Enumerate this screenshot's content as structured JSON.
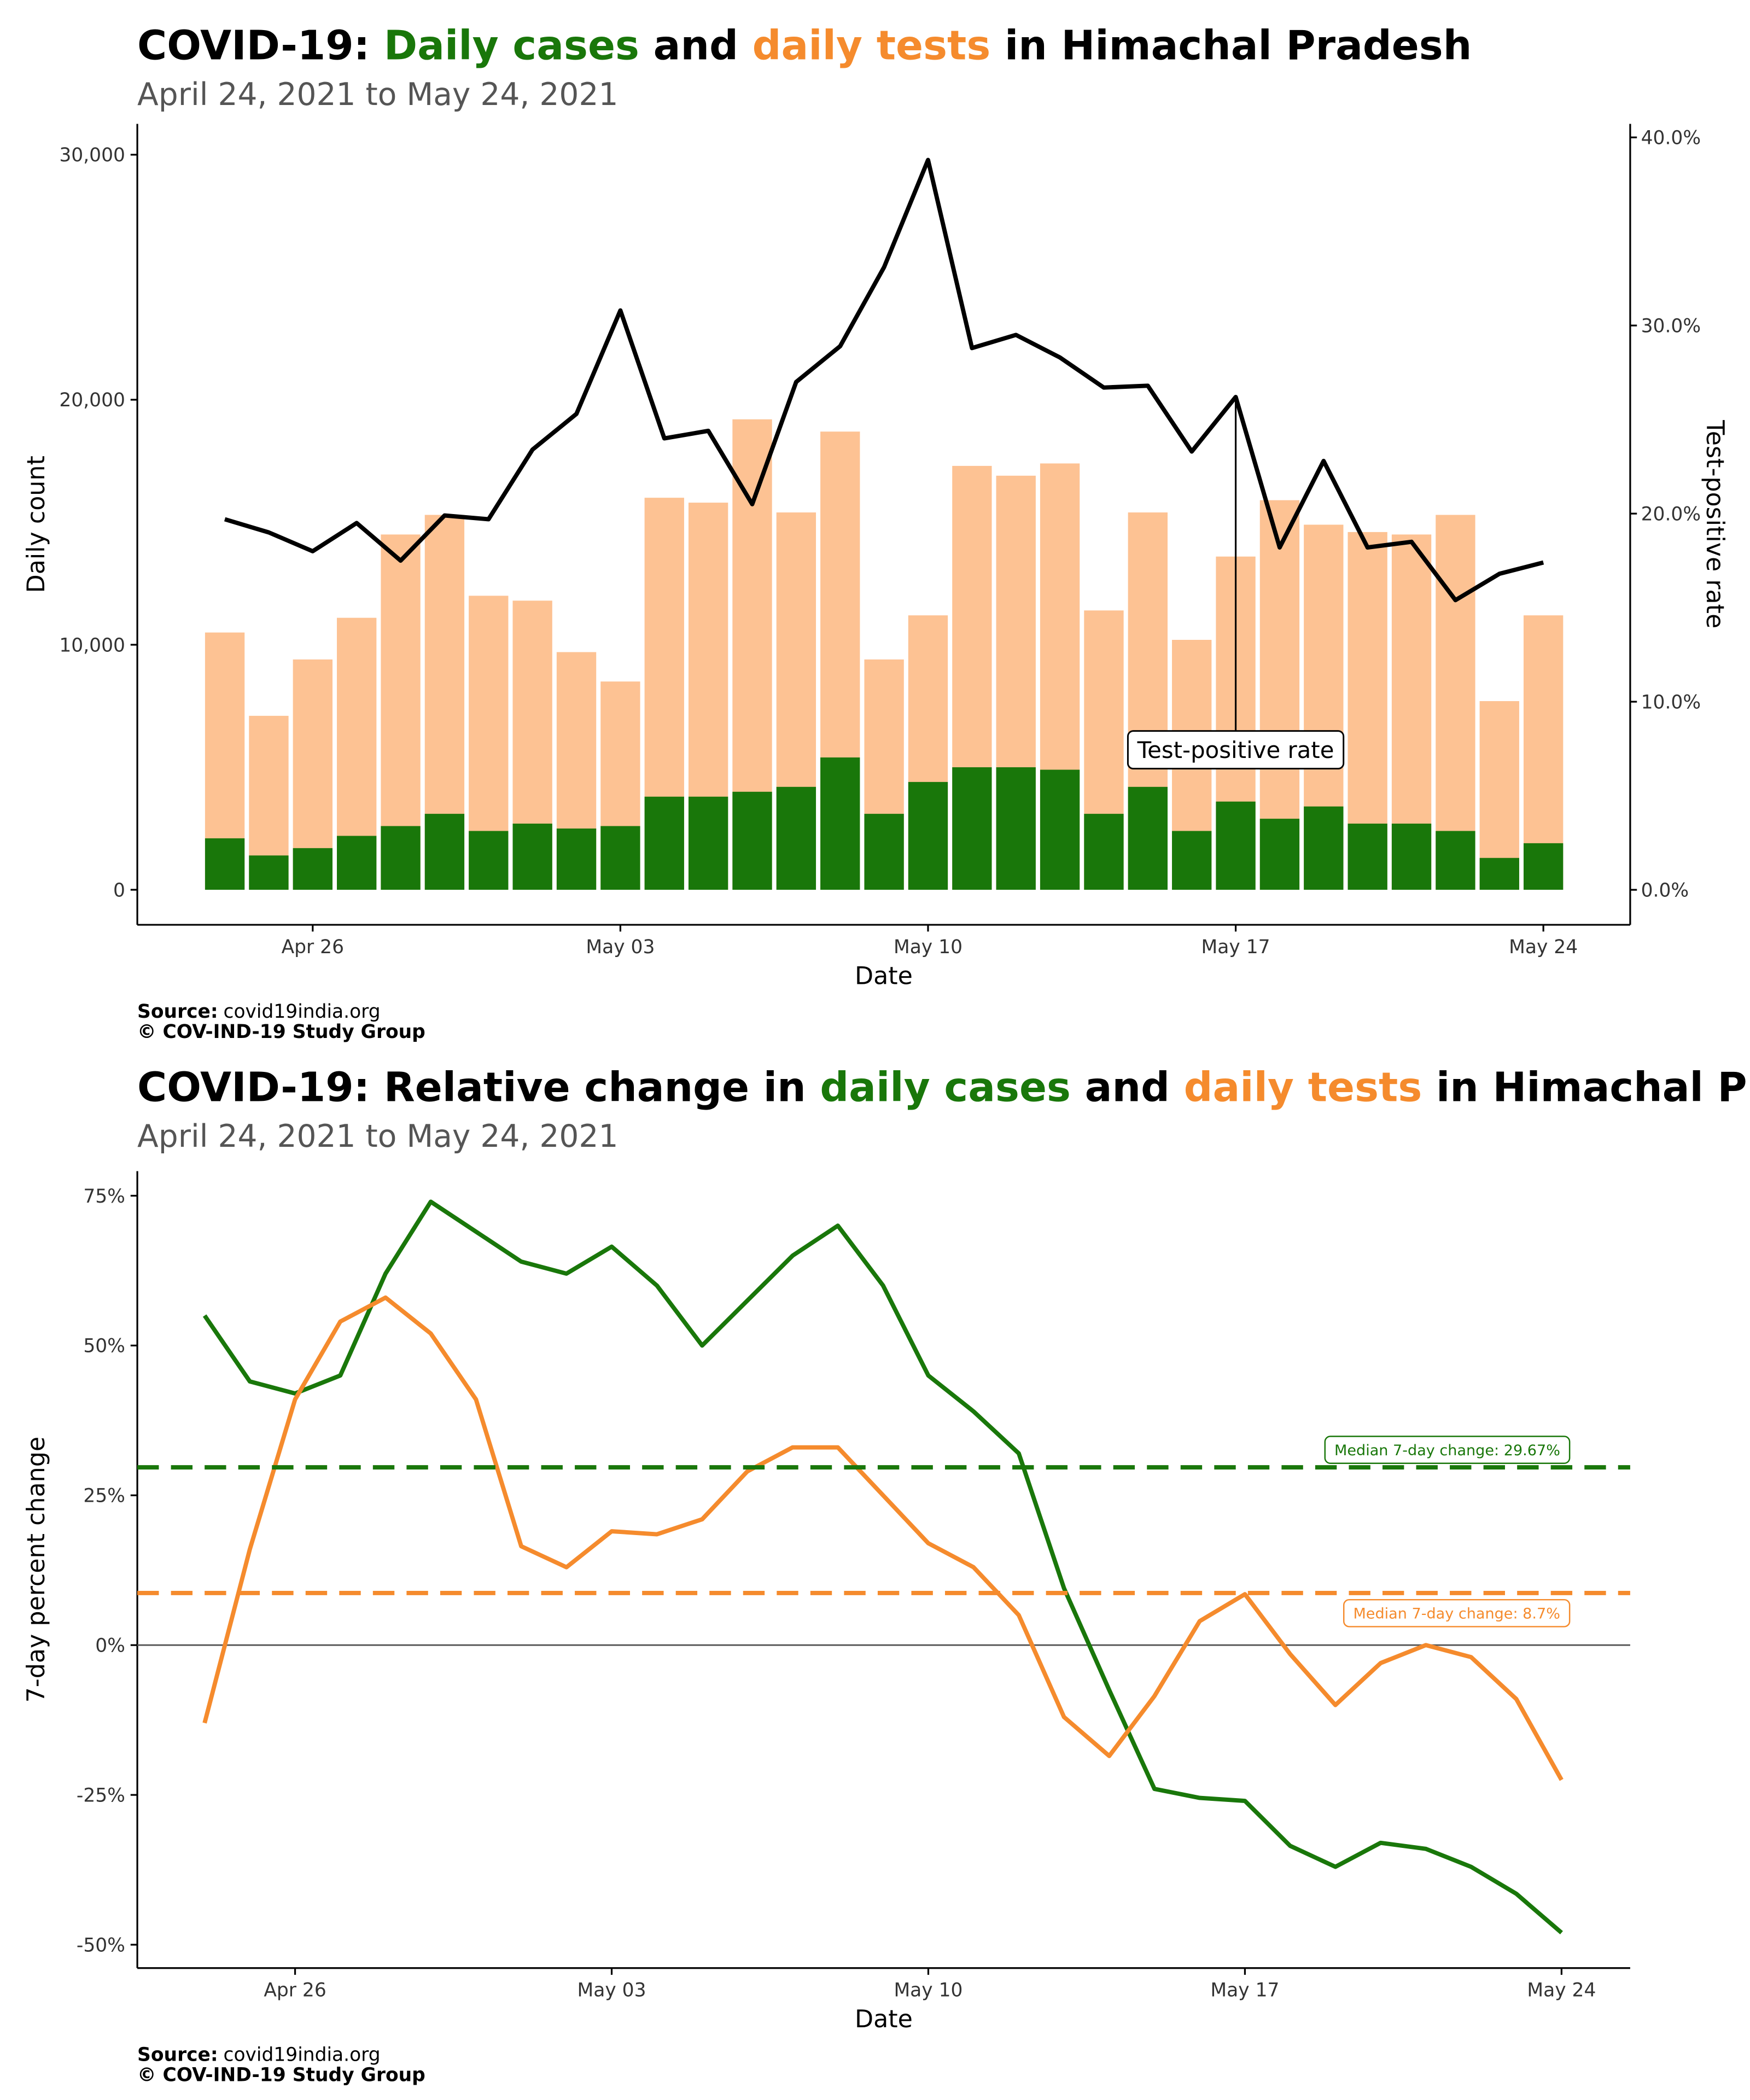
{
  "chart_data": [
    {
      "type": "bar",
      "title": [
        {
          "text": "COVID-19: ",
          "color": "#000000"
        },
        {
          "text": "Daily cases",
          "color": "#19770a"
        },
        {
          "text": " and ",
          "color": "#000000"
        },
        {
          "text": "daily tests",
          "color": "#f58b2d"
        },
        {
          "text": " in Himachal Pradesh",
          "color": "#000000"
        }
      ],
      "subtitle": "April 24, 2021 to May 24, 2021",
      "x_label": "Date",
      "y_label": "Daily count",
      "y2_label": "Test-positive rate",
      "source_label": "Source:",
      "source": "covid19india.org",
      "credit": "© COV-IND-19 Study Group",
      "categories": [
        "Apr 24",
        "Apr 25",
        "Apr 26",
        "Apr 27",
        "Apr 28",
        "Apr 29",
        "Apr 30",
        "May 01",
        "May 02",
        "May 03",
        "May 04",
        "May 05",
        "May 06",
        "May 07",
        "May 08",
        "May 09",
        "May 10",
        "May 11",
        "May 12",
        "May 13",
        "May 14",
        "May 15",
        "May 16",
        "May 17",
        "May 18",
        "May 19",
        "May 20",
        "May 21",
        "May 22",
        "May 23",
        "May 24"
      ],
      "xticks": [
        "Apr 26",
        "May 03",
        "May 10",
        "May 17",
        "May 24"
      ],
      "ylim": [
        -1430,
        31260
      ],
      "yticks": [
        0,
        {
          "value": 10000,
          "label": "10,000"
        },
        {
          "value": 20000,
          "label": "20,000"
        },
        {
          "value": 30000,
          "label": "30,000"
        }
      ],
      "y2lim": [
        -1.86,
        40.72
      ],
      "y2ticks": [
        {
          "value": 0,
          "label": "0.0%"
        },
        {
          "value": 10,
          "label": "10.0%"
        },
        {
          "value": 20,
          "label": "20.0%"
        },
        {
          "value": 30,
          "label": "30.0%"
        },
        {
          "value": 40,
          "label": "40.0%"
        }
      ],
      "grid": false,
      "series": [
        {
          "mark": "bar",
          "color": "#fdc293",
          "values": [
            10500,
            7100,
            9400,
            11100,
            14500,
            15300,
            12000,
            11800,
            9700,
            8500,
            16000,
            15800,
            19200,
            15400,
            18700,
            9400,
            11200,
            17300,
            16900,
            17400,
            11400,
            15400,
            10200,
            13600,
            15900,
            14900,
            14600,
            14500,
            15300,
            7700,
            11200
          ]
        },
        {
          "mark": "bar",
          "color": "#19770a",
          "values": [
            2100,
            1400,
            1700,
            2200,
            2600,
            3100,
            2400,
            2700,
            2500,
            2600,
            3800,
            3800,
            4000,
            4200,
            5400,
            3100,
            4400,
            5000,
            5000,
            4900,
            3100,
            4200,
            2400,
            3600,
            2900,
            3400,
            2700,
            2700,
            2400,
            1300,
            1900
          ]
        },
        {
          "mark": "line",
          "axis": "y2",
          "color": "#000000",
          "values": [
            19.7,
            19.0,
            18.0,
            19.5,
            17.5,
            19.9,
            19.7,
            23.4,
            25.3,
            30.8,
            24.0,
            24.4,
            20.5,
            27.0,
            28.9,
            33.1,
            38.8,
            28.8,
            29.5,
            28.3,
            26.7,
            26.8,
            23.3,
            26.2,
            18.2,
            22.8,
            18.2,
            18.5,
            15.4,
            16.8,
            17.4
          ]
        }
      ],
      "annotation": {
        "text": "Test-positive rate",
        "x": "May 17"
      }
    },
    {
      "type": "line",
      "title": [
        {
          "text": "COVID-19: Relative change in ",
          "color": "#000000"
        },
        {
          "text": "daily cases",
          "color": "#19770a"
        },
        {
          "text": " and ",
          "color": "#000000"
        },
        {
          "text": "daily tests",
          "color": "#f58b2d"
        },
        {
          "text": " in Himachal Pradesh",
          "color": "#000000"
        }
      ],
      "subtitle": "April 24, 2021 to May 24, 2021",
      "x_label": "Date",
      "y_label": "7-day percent change",
      "source_label": "Source:",
      "source": "covid19india.org",
      "credit": "© COV-IND-19 Study Group",
      "categories": [
        "Apr 24",
        "Apr 25",
        "Apr 26",
        "Apr 27",
        "Apr 28",
        "Apr 29",
        "Apr 30",
        "May 01",
        "May 02",
        "May 03",
        "May 04",
        "May 05",
        "May 06",
        "May 07",
        "May 08",
        "May 09",
        "May 10",
        "May 11",
        "May 12",
        "May 13",
        "May 14",
        "May 15",
        "May 16",
        "May 17",
        "May 18",
        "May 19",
        "May 20",
        "May 21",
        "May 22",
        "May 23",
        "May 24"
      ],
      "xticks": [
        "Apr 26",
        "May 03",
        "May 10",
        "May 17",
        "May 24"
      ],
      "ylim": [
        -53.9,
        79.1
      ],
      "yticks": [
        {
          "value": -50,
          "label": "-50%"
        },
        {
          "value": -25,
          "label": "-25%"
        },
        {
          "value": 0,
          "label": "0%"
        },
        {
          "value": 25,
          "label": "25%"
        },
        {
          "value": 50,
          "label": "50%"
        },
        {
          "value": 75,
          "label": "75%"
        }
      ],
      "grid": false,
      "series": [
        {
          "mark": "line",
          "color": "#19770a",
          "values": [
            55,
            44,
            42,
            45,
            62,
            74,
            69,
            64,
            62,
            66.5,
            60,
            50,
            57.5,
            65,
            70,
            60,
            45,
            39,
            32,
            9.5,
            -7.5,
            -24,
            -25.5,
            -26,
            -33.5,
            -37,
            -33,
            -34,
            -37,
            -41.5,
            -48
          ]
        },
        {
          "mark": "line",
          "color": "#f58b2d",
          "values": [
            -13,
            16,
            41,
            54,
            58,
            52,
            41,
            16.5,
            13,
            19,
            18.5,
            21,
            29,
            33,
            33,
            25,
            17,
            13,
            5,
            -12,
            -18.5,
            -8.5,
            4,
            8.5,
            -1.5,
            -10,
            -3,
            0,
            -2,
            -9,
            -22.5
          ]
        }
      ],
      "hlines": [
        {
          "value": 29.67,
          "color": "#19770a",
          "label": "Median 7-day change: 29.67%",
          "label_side": "above"
        },
        {
          "value": 8.7,
          "color": "#f58b2d",
          "label": "Median 7-day change: 8.7%",
          "label_side": "below"
        }
      ]
    }
  ]
}
